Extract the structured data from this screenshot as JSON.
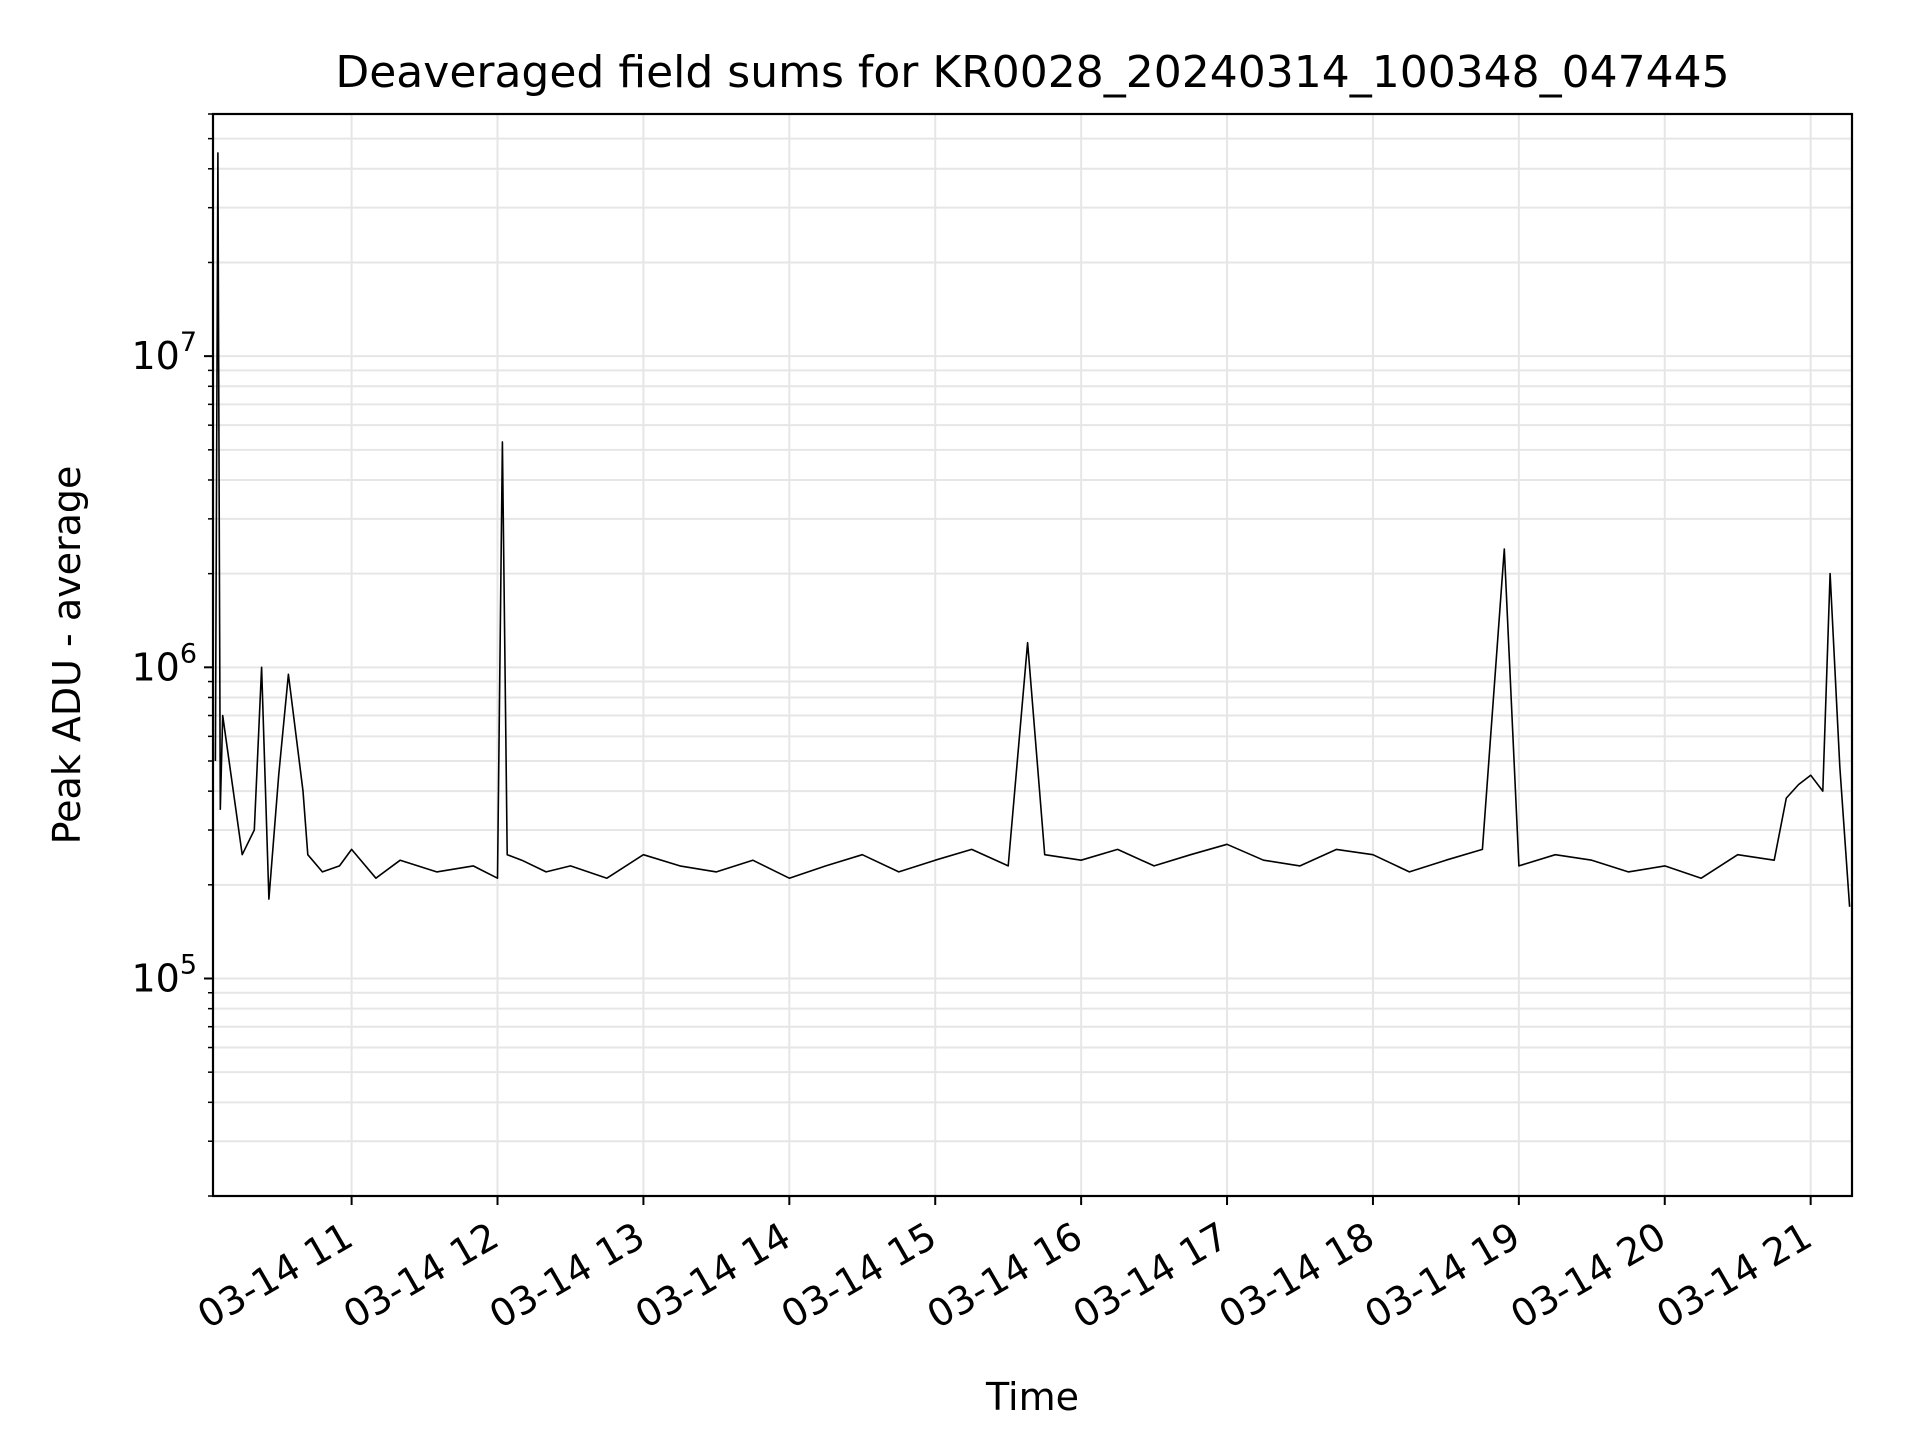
{
  "chart_data": {
    "type": "line",
    "title": "Deaveraged field sums for KR0028_20240314_100348_047445",
    "xlabel": "Time",
    "ylabel": "Peak ADU - average",
    "yscale": "log",
    "ylim": [
      20000,
      60000000
    ],
    "xlim": [
      "2024-03-14 10:03",
      "2024-03-14 21:17"
    ],
    "grid": true,
    "line_color": "#000000",
    "grid_color": "#e6e6e6",
    "x_ticks": [
      {
        "value": "2024-03-14 11:00",
        "label": "03-14 11"
      },
      {
        "value": "2024-03-14 12:00",
        "label": "03-14 12"
      },
      {
        "value": "2024-03-14 13:00",
        "label": "03-14 13"
      },
      {
        "value": "2024-03-14 14:00",
        "label": "03-14 14"
      },
      {
        "value": "2024-03-14 15:00",
        "label": "03-14 15"
      },
      {
        "value": "2024-03-14 16:00",
        "label": "03-14 16"
      },
      {
        "value": "2024-03-14 17:00",
        "label": "03-14 17"
      },
      {
        "value": "2024-03-14 18:00",
        "label": "03-14 18"
      },
      {
        "value": "2024-03-14 19:00",
        "label": "03-14 19"
      },
      {
        "value": "2024-03-14 20:00",
        "label": "03-14 20"
      },
      {
        "value": "2024-03-14 21:00",
        "label": "03-14 21"
      }
    ],
    "y_ticks": [
      {
        "value": 100000,
        "base": "10",
        "exp": "5"
      },
      {
        "value": 1000000,
        "base": "10",
        "exp": "6"
      },
      {
        "value": 10000000,
        "base": "10",
        "exp": "7"
      }
    ],
    "series": [
      {
        "x": [
          "2024-03-14 10:04",
          "2024-03-14 10:05",
          "2024-03-14 10:06",
          "2024-03-14 10:07",
          "2024-03-14 10:15",
          "2024-03-14 10:20",
          "2024-03-14 10:23",
          "2024-03-14 10:26",
          "2024-03-14 10:30",
          "2024-03-14 10:34",
          "2024-03-14 10:40",
          "2024-03-14 10:42",
          "2024-03-14 10:48",
          "2024-03-14 10:55",
          "2024-03-14 11:00",
          "2024-03-14 11:10",
          "2024-03-14 11:20",
          "2024-03-14 11:35",
          "2024-03-14 11:50",
          "2024-03-14 12:00",
          "2024-03-14 12:02",
          "2024-03-14 12:04",
          "2024-03-14 12:10",
          "2024-03-14 12:20",
          "2024-03-14 12:30",
          "2024-03-14 12:45",
          "2024-03-14 13:00",
          "2024-03-14 13:15",
          "2024-03-14 13:30",
          "2024-03-14 13:45",
          "2024-03-14 14:00",
          "2024-03-14 14:15",
          "2024-03-14 14:30",
          "2024-03-14 14:45",
          "2024-03-14 15:00",
          "2024-03-14 15:15",
          "2024-03-14 15:30",
          "2024-03-14 15:38",
          "2024-03-14 15:45",
          "2024-03-14 16:00",
          "2024-03-14 16:15",
          "2024-03-14 16:30",
          "2024-03-14 16:45",
          "2024-03-14 17:00",
          "2024-03-14 17:15",
          "2024-03-14 17:30",
          "2024-03-14 17:45",
          "2024-03-14 18:00",
          "2024-03-14 18:15",
          "2024-03-14 18:30",
          "2024-03-14 18:45",
          "2024-03-14 18:54",
          "2024-03-14 19:00",
          "2024-03-14 19:15",
          "2024-03-14 19:30",
          "2024-03-14 19:45",
          "2024-03-14 20:00",
          "2024-03-14 20:15",
          "2024-03-14 20:30",
          "2024-03-14 20:45",
          "2024-03-14 20:50",
          "2024-03-14 20:55",
          "2024-03-14 21:00",
          "2024-03-14 21:05",
          "2024-03-14 21:08",
          "2024-03-14 21:12",
          "2024-03-14 21:16"
        ],
        "y": [
          500000,
          45000000,
          350000,
          700000,
          250000,
          300000,
          1000000,
          180000,
          450000,
          950000,
          400000,
          250000,
          220000,
          230000,
          260000,
          210000,
          240000,
          220000,
          230000,
          210000,
          5300000,
          250000,
          240000,
          220000,
          230000,
          210000,
          250000,
          230000,
          220000,
          240000,
          210000,
          230000,
          250000,
          220000,
          240000,
          260000,
          230000,
          1200000,
          250000,
          240000,
          260000,
          230000,
          250000,
          270000,
          240000,
          230000,
          260000,
          250000,
          220000,
          240000,
          260000,
          2400000,
          230000,
          250000,
          240000,
          220000,
          230000,
          210000,
          250000,
          240000,
          380000,
          420000,
          450000,
          400000,
          2000000,
          480000,
          170000
        ]
      }
    ]
  }
}
